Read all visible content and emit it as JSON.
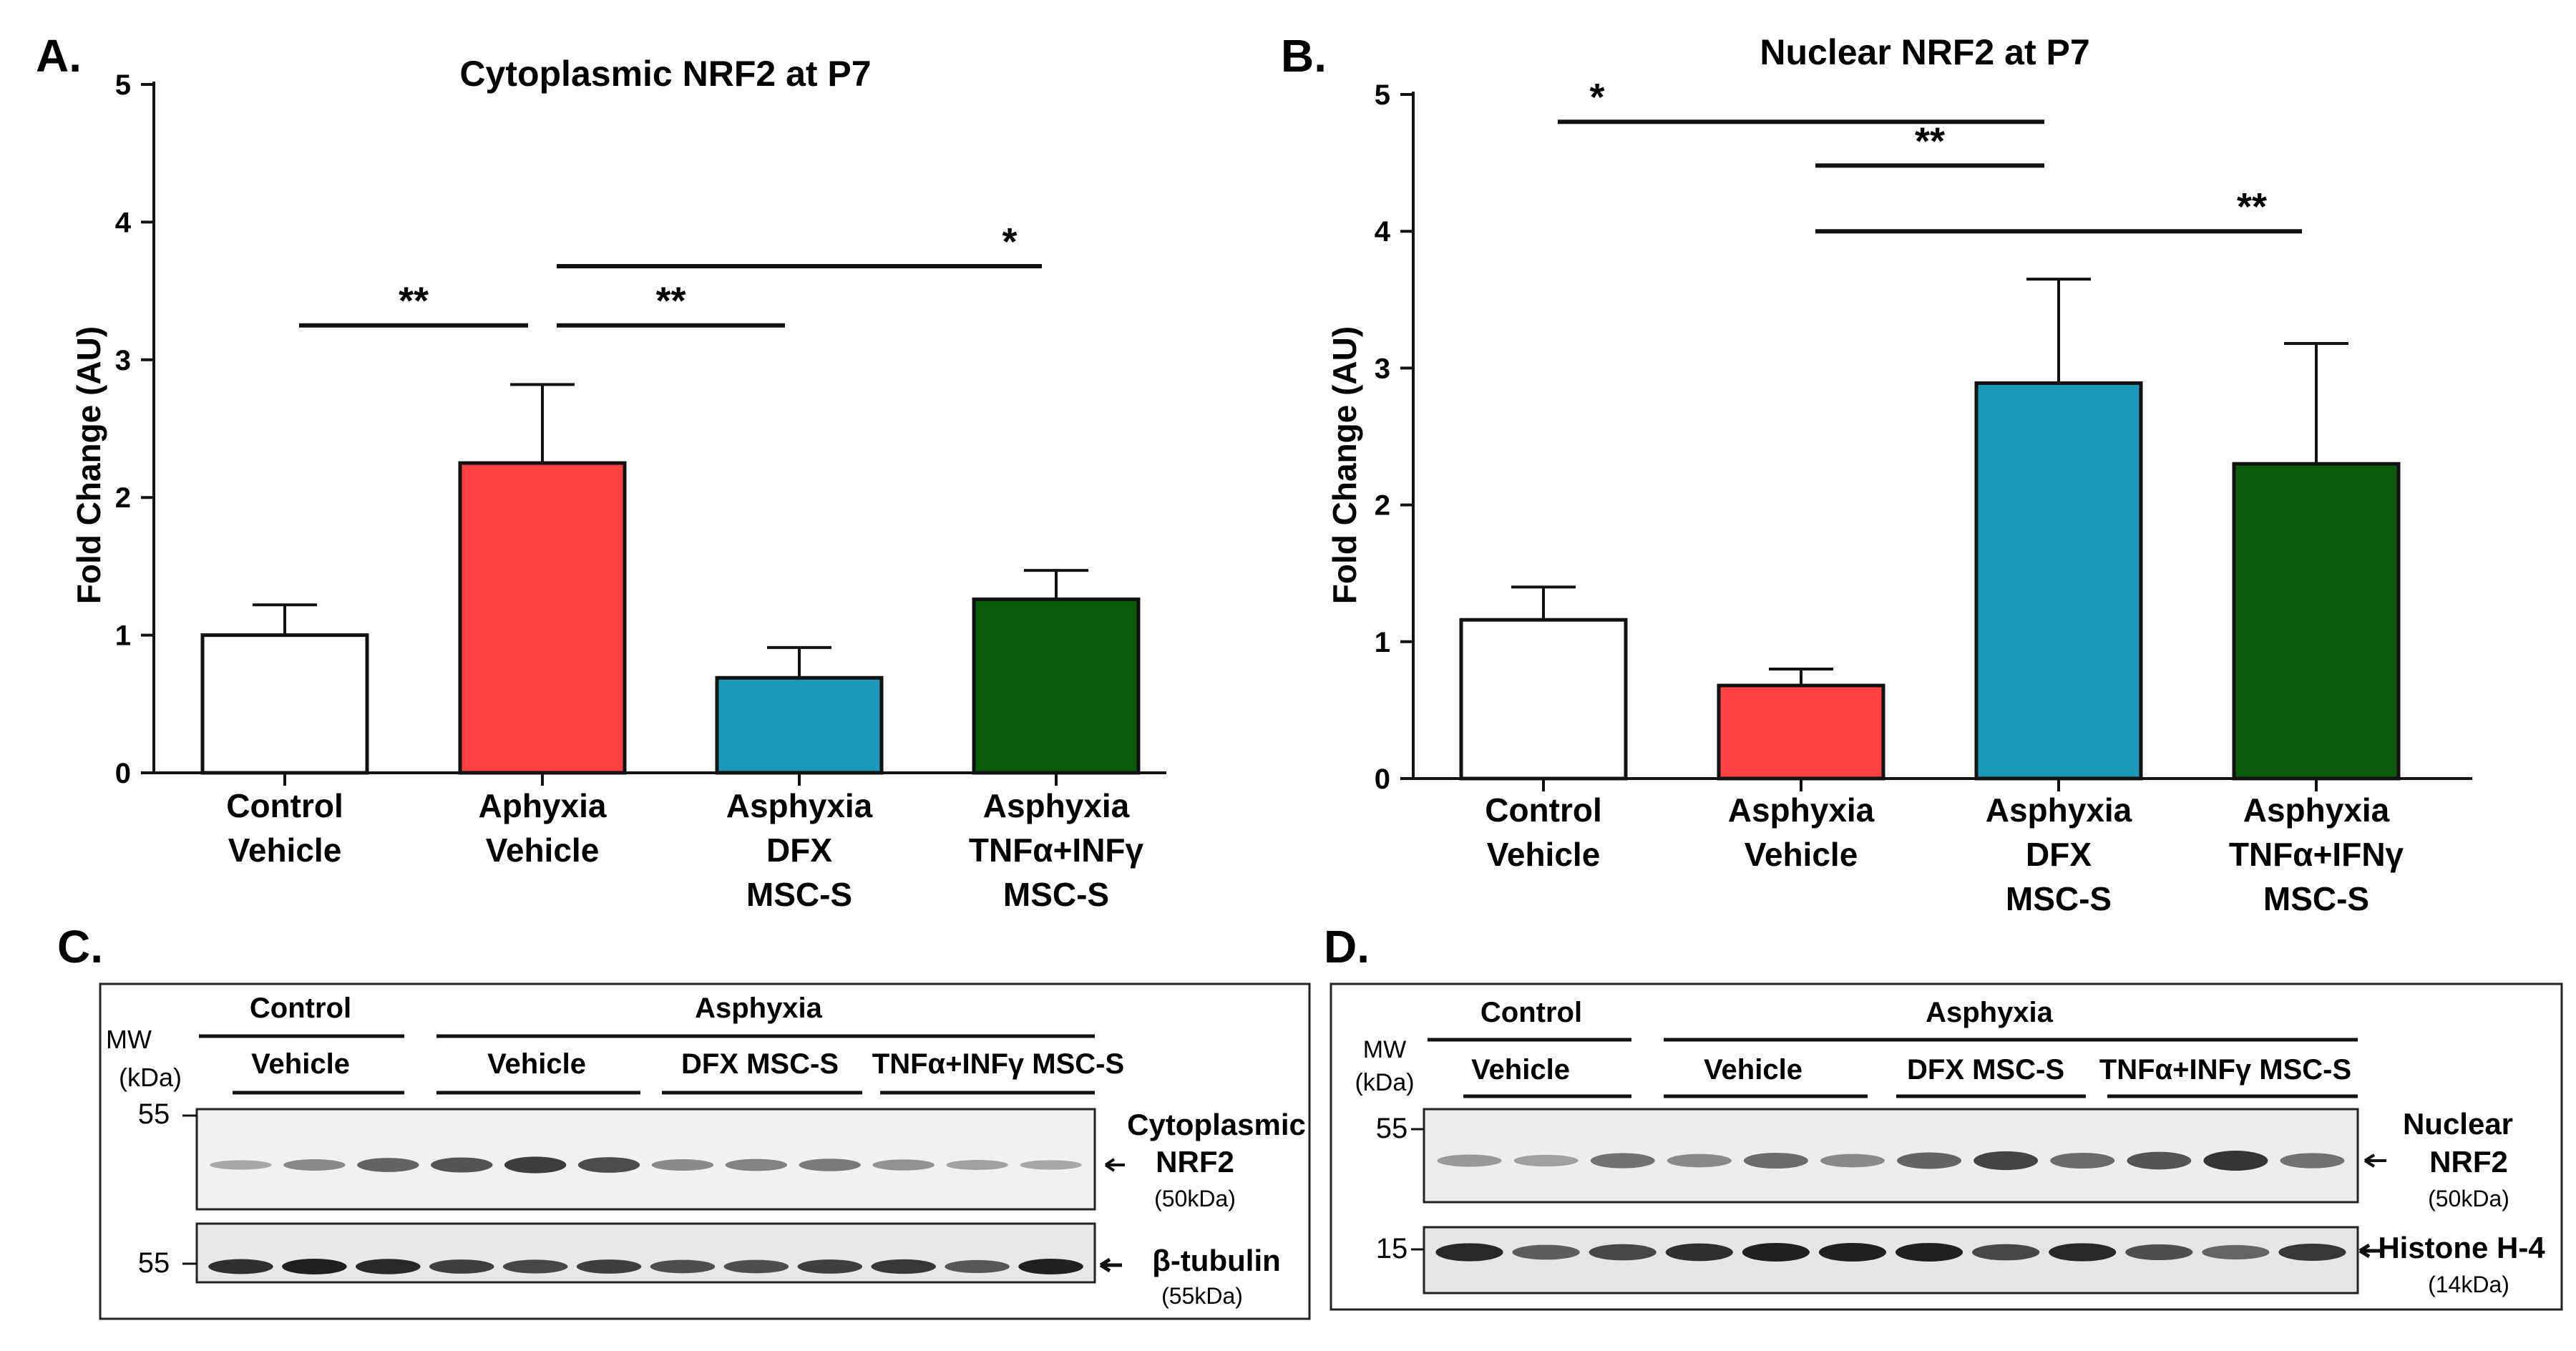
{
  "panel_labels": {
    "a": "A.",
    "b": "B.",
    "c": "C.",
    "d": "D."
  },
  "chart_data": [
    {
      "type": "bar",
      "title": "Cytoplasmic NRF2 at P7",
      "ylabel": "Fold Change (AU)",
      "xlabel": "",
      "ylim": [
        0,
        5
      ],
      "yticks": [
        "0",
        "1",
        "2",
        "3",
        "4",
        "5"
      ],
      "categories": [
        [
          "Control",
          "Vehicle"
        ],
        [
          "Aphyxia",
          "Vehicle"
        ],
        [
          "Asphyxia",
          "DFX",
          "MSC-S"
        ],
        [
          "Asphyxia",
          "TNFα+INFγ",
          "MSC-S"
        ]
      ],
      "values": [
        1.0,
        2.25,
        0.69,
        1.26
      ],
      "errors": [
        0.22,
        0.57,
        0.22,
        0.21
      ],
      "colors": [
        "#ffffff",
        "#ff4141",
        "#1a98b5",
        "#0b5a0b"
      ],
      "significance": [
        {
          "from": 0,
          "to": 1,
          "label": "**",
          "level": 3.25
        },
        {
          "from": 1,
          "to": 2,
          "label": "**",
          "level": 3.25
        },
        {
          "from": 1,
          "to": 3,
          "label": "*",
          "level": 3.68
        }
      ]
    },
    {
      "type": "bar",
      "title": "Nuclear NRF2 at P7",
      "ylabel": "Fold Change (AU)",
      "xlabel": "",
      "ylim": [
        0,
        5
      ],
      "yticks": [
        "0",
        "1",
        "2",
        "3",
        "4",
        "5"
      ],
      "categories": [
        [
          "Control",
          "Vehicle"
        ],
        [
          "Asphyxia",
          "Vehicle"
        ],
        [
          "Asphyxia",
          "DFX",
          "MSC-S"
        ],
        [
          "Asphyxia",
          "TNFα+IFNγ",
          "MSC-S"
        ]
      ],
      "values": [
        1.16,
        0.68,
        2.89,
        2.3
      ],
      "errors": [
        0.24,
        0.12,
        0.76,
        0.88
      ],
      "colors": [
        "#ffffff",
        "#ff4141",
        "#1a98b5",
        "#0b5a0b"
      ],
      "significance": [
        {
          "from": 0,
          "to": 2,
          "label": "*",
          "level": 4.8
        },
        {
          "from": 1,
          "to": 2,
          "label": "**",
          "level": 4.48
        },
        {
          "from": 1,
          "to": 3,
          "label": "**",
          "level": 4.0
        }
      ]
    }
  ],
  "blot_c": {
    "mw_label": "MW",
    "kda_label": "(kDa)",
    "group_control": "Control",
    "group_asphyxia": "Asphyxia",
    "lanes": [
      "Vehicle",
      "Vehicle",
      "DFX MSC-S",
      "TNFα+INFγ MSC-S"
    ],
    "marker_top": "55",
    "marker_bottom": "55",
    "protein_top": "Cytoplasmic",
    "protein_top2": "NRF2",
    "size_top": "(50kDa)",
    "protein_bottom": "β-tubulin",
    "size_bottom": "(55kDa)",
    "intensity_top": [
      0.25,
      0.45,
      0.7,
      0.8,
      0.95,
      0.85,
      0.45,
      0.5,
      0.55,
      0.4,
      0.3,
      0.25
    ],
    "intensity_bottom": [
      0.9,
      1.0,
      0.95,
      0.8,
      0.75,
      0.8,
      0.7,
      0.7,
      0.8,
      0.85,
      0.65,
      1.0
    ]
  },
  "blot_d": {
    "mw_label": "MW",
    "kda_label": "(kDa)",
    "group_control": "Control",
    "group_asphyxia": "Asphyxia",
    "lanes": [
      "Vehicle",
      "Vehicle",
      "DFX MSC-S",
      "TNFα+INFγ MSC-S"
    ],
    "marker_top": "55",
    "marker_bottom": "15",
    "protein_top": "Nuclear",
    "protein_top2": "NRF2",
    "size_top": "(50kDa)",
    "protein_bottom": "Histone H-4",
    "size_bottom": "(14kDa)",
    "intensity_top": [
      0.35,
      0.3,
      0.6,
      0.45,
      0.65,
      0.45,
      0.7,
      0.9,
      0.65,
      0.8,
      1.0,
      0.6
    ],
    "intensity_bottom": [
      0.95,
      0.6,
      0.75,
      0.9,
      1.0,
      1.0,
      1.0,
      0.75,
      0.95,
      0.7,
      0.55,
      0.85
    ]
  }
}
